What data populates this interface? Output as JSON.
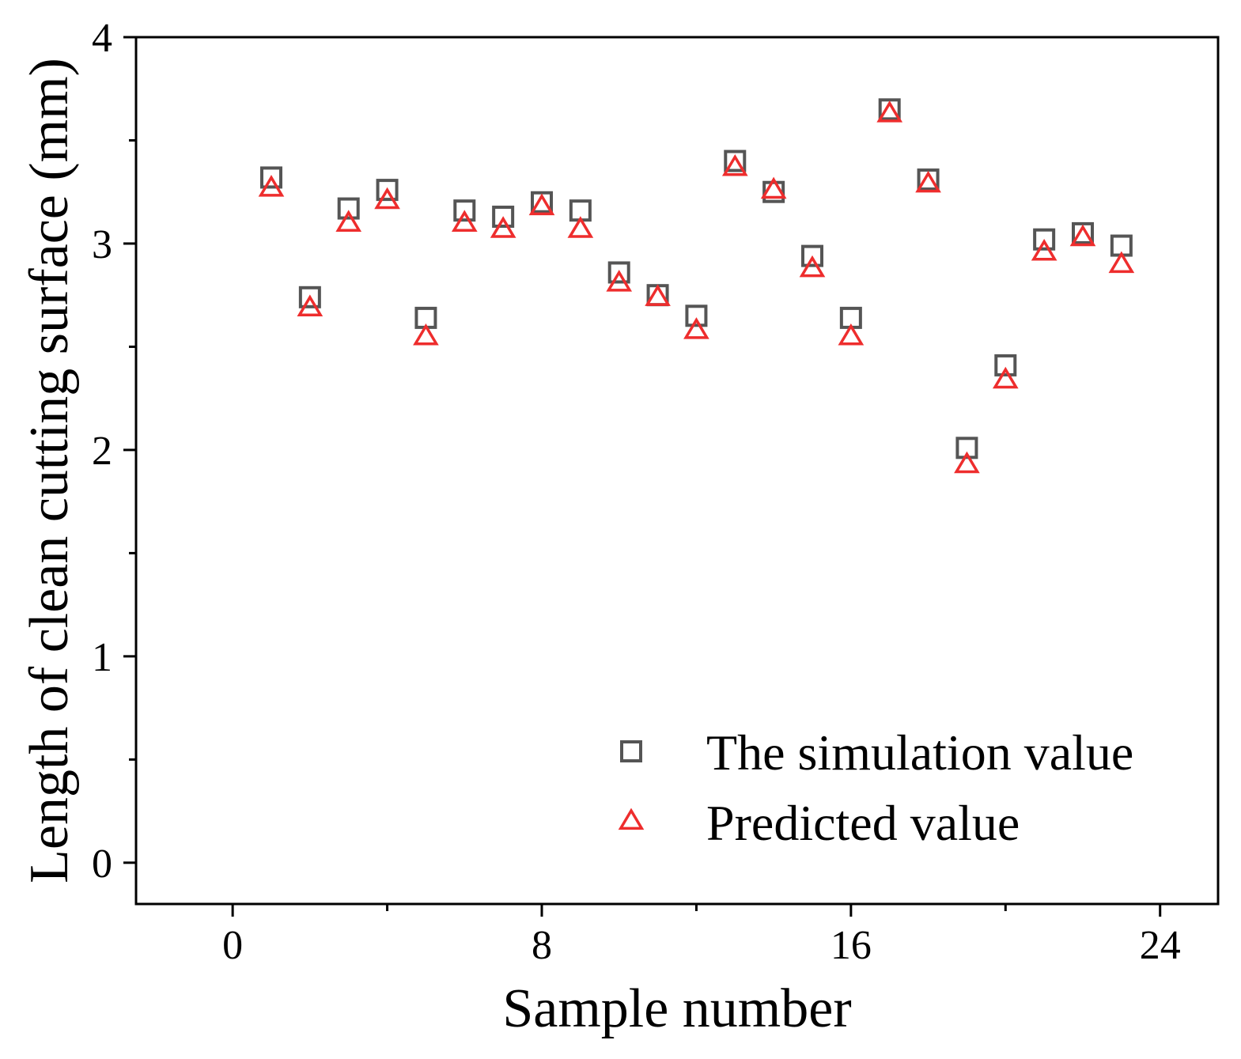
{
  "chart_data": {
    "type": "scatter",
    "title": "",
    "xlabel": "Sample number",
    "ylabel": "Length of clean cutting surface (mm)",
    "xlim": [
      -2.5,
      25.5
    ],
    "ylim": [
      -0.2,
      4
    ],
    "xticks": [
      0,
      8,
      16,
      24
    ],
    "xtick_labels": [
      "0",
      "8",
      "16",
      "24"
    ],
    "x_minor_ticks": [
      4,
      12,
      20
    ],
    "yticks": [
      0,
      1,
      2,
      3,
      4
    ],
    "ytick_labels": [
      "0",
      "1",
      "2",
      "3",
      "4"
    ],
    "y_minor_ticks": [
      0.5,
      1.5,
      2.5,
      3.5
    ],
    "legend_position": "bottom-right",
    "series": [
      {
        "name": "The simulation value",
        "marker": "square",
        "color": "#555555",
        "x": [
          1,
          2,
          3,
          4,
          5,
          6,
          7,
          8,
          9,
          10,
          11,
          12,
          13,
          14,
          15,
          16,
          17,
          18,
          19,
          20,
          21,
          22,
          23
        ],
        "y": [
          3.32,
          2.74,
          3.17,
          3.26,
          2.64,
          3.16,
          3.13,
          3.2,
          3.16,
          2.86,
          2.75,
          2.65,
          3.4,
          3.25,
          2.94,
          2.64,
          3.65,
          3.31,
          2.01,
          2.41,
          3.02,
          3.05,
          2.99
        ]
      },
      {
        "name": "Predicted value",
        "marker": "triangle",
        "color": "#ee2d2d",
        "x": [
          1,
          2,
          3,
          4,
          5,
          6,
          7,
          8,
          9,
          10,
          11,
          12,
          13,
          14,
          15,
          16,
          17,
          18,
          19,
          20,
          21,
          22,
          23
        ],
        "y": [
          3.27,
          2.69,
          3.1,
          3.21,
          2.55,
          3.1,
          3.07,
          3.18,
          3.07,
          2.81,
          2.74,
          2.58,
          3.37,
          3.26,
          2.88,
          2.55,
          3.63,
          3.29,
          1.93,
          2.34,
          2.96,
          3.03,
          2.9
        ]
      }
    ]
  }
}
